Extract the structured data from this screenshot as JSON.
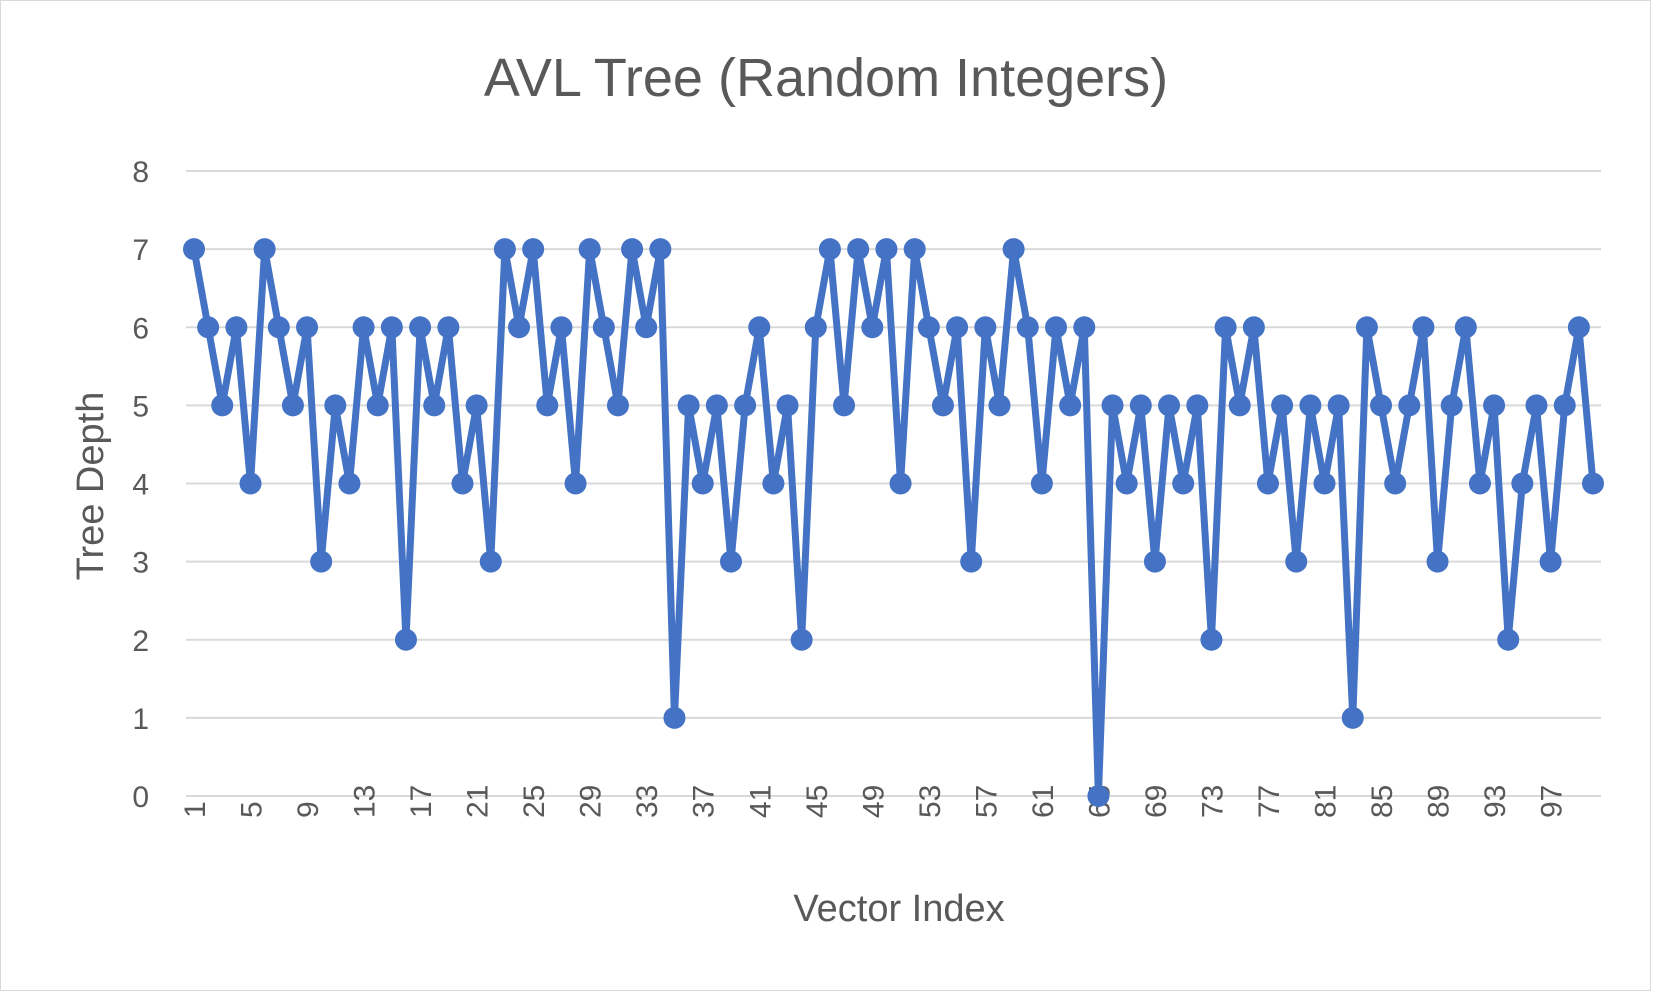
{
  "chart_data": {
    "type": "line",
    "title": "AVL Tree (Random Integers)",
    "xlabel": "Vector Index",
    "ylabel": "Tree Depth",
    "ylim": [
      0,
      8
    ],
    "y_ticks": [
      0,
      1,
      2,
      3,
      4,
      5,
      6,
      7,
      8
    ],
    "x_tick_labels": [
      "1",
      "5",
      "9",
      "13",
      "17",
      "21",
      "25",
      "29",
      "33",
      "37",
      "41",
      "45",
      "49",
      "53",
      "57",
      "61",
      "65",
      "69",
      "73",
      "77",
      "81",
      "85",
      "89",
      "93",
      "97"
    ],
    "x": [
      1,
      2,
      3,
      4,
      5,
      6,
      7,
      8,
      9,
      10,
      11,
      12,
      13,
      14,
      15,
      16,
      17,
      18,
      19,
      20,
      21,
      22,
      23,
      24,
      25,
      26,
      27,
      28,
      29,
      30,
      31,
      32,
      33,
      34,
      35,
      36,
      37,
      38,
      39,
      40,
      41,
      42,
      43,
      44,
      45,
      46,
      47,
      48,
      49,
      50,
      51,
      52,
      53,
      54,
      55,
      56,
      57,
      58,
      59,
      60,
      61,
      62,
      63,
      64,
      65,
      66,
      67,
      68,
      69,
      70,
      71,
      72,
      73,
      74,
      75,
      76,
      77,
      78,
      79,
      80,
      81,
      82,
      83,
      84,
      85,
      86,
      87,
      88,
      89,
      90,
      91,
      92,
      93,
      94,
      95,
      96,
      97,
      98,
      99,
      100
    ],
    "series": [
      {
        "color": "#4472c4",
        "values": [
          7,
          6,
          5,
          6,
          4,
          7,
          6,
          5,
          6,
          3,
          5,
          4,
          6,
          5,
          6,
          2,
          6,
          5,
          6,
          4,
          5,
          3,
          7,
          6,
          7,
          5,
          6,
          4,
          7,
          6,
          5,
          7,
          6,
          7,
          1,
          5,
          4,
          5,
          3,
          5,
          6,
          4,
          5,
          2,
          6,
          7,
          5,
          7,
          6,
          7,
          4,
          7,
          6,
          5,
          6,
          3,
          6,
          5,
          7,
          6,
          4,
          6,
          5,
          6,
          0,
          5,
          4,
          5,
          3,
          5,
          4,
          5,
          2,
          6,
          5,
          6,
          4,
          5,
          3,
          5,
          4,
          5,
          1,
          6,
          5,
          4,
          5,
          6,
          3,
          5,
          6,
          4,
          5,
          2,
          4,
          5,
          3,
          5,
          6,
          4
        ]
      }
    ],
    "grid": true,
    "legend": "none"
  }
}
